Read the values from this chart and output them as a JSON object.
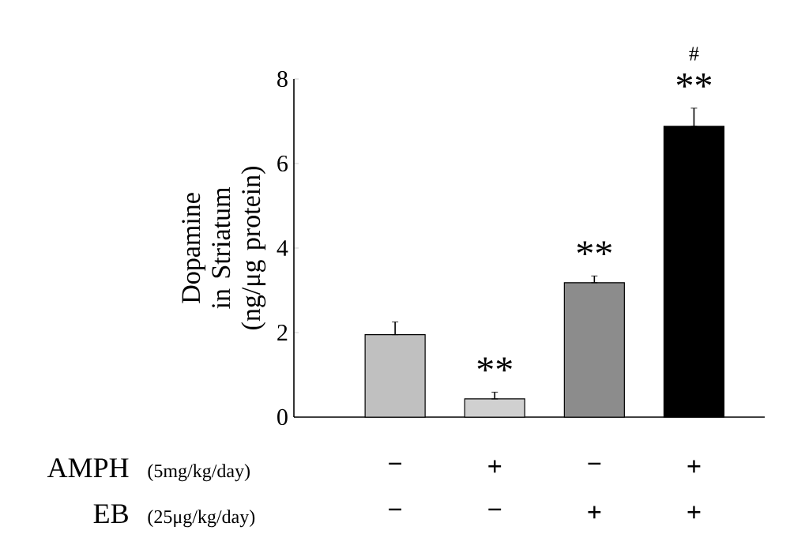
{
  "chart_data": {
    "type": "bar",
    "ylabel": "Dopamine in Striatum (ng/μg protein)",
    "categories": [
      null,
      null,
      null,
      null
    ],
    "values": [
      1.95,
      0.43,
      3.18,
      6.88
    ],
    "errors": [
      [
        1.95,
        2.25
      ],
      [
        0.43,
        0.59
      ],
      [
        3.18,
        3.34
      ],
      [
        6.88,
        7.31
      ]
    ],
    "colors": [
      "#c0c0c0",
      "#d0d0d0",
      "#8c8c8c",
      "#000000"
    ],
    "ylim": [
      0,
      8
    ],
    "yticks": [
      0,
      2,
      4,
      6,
      8
    ],
    "annotations": [
      "**",
      "**",
      "**",
      "#",
      "AMPH",
      "(5mg/kg/day)",
      "−",
      "+",
      "−",
      "+",
      "EB",
      "(25μg/kg/day)",
      "−",
      "−",
      "+",
      "+"
    ]
  }
}
